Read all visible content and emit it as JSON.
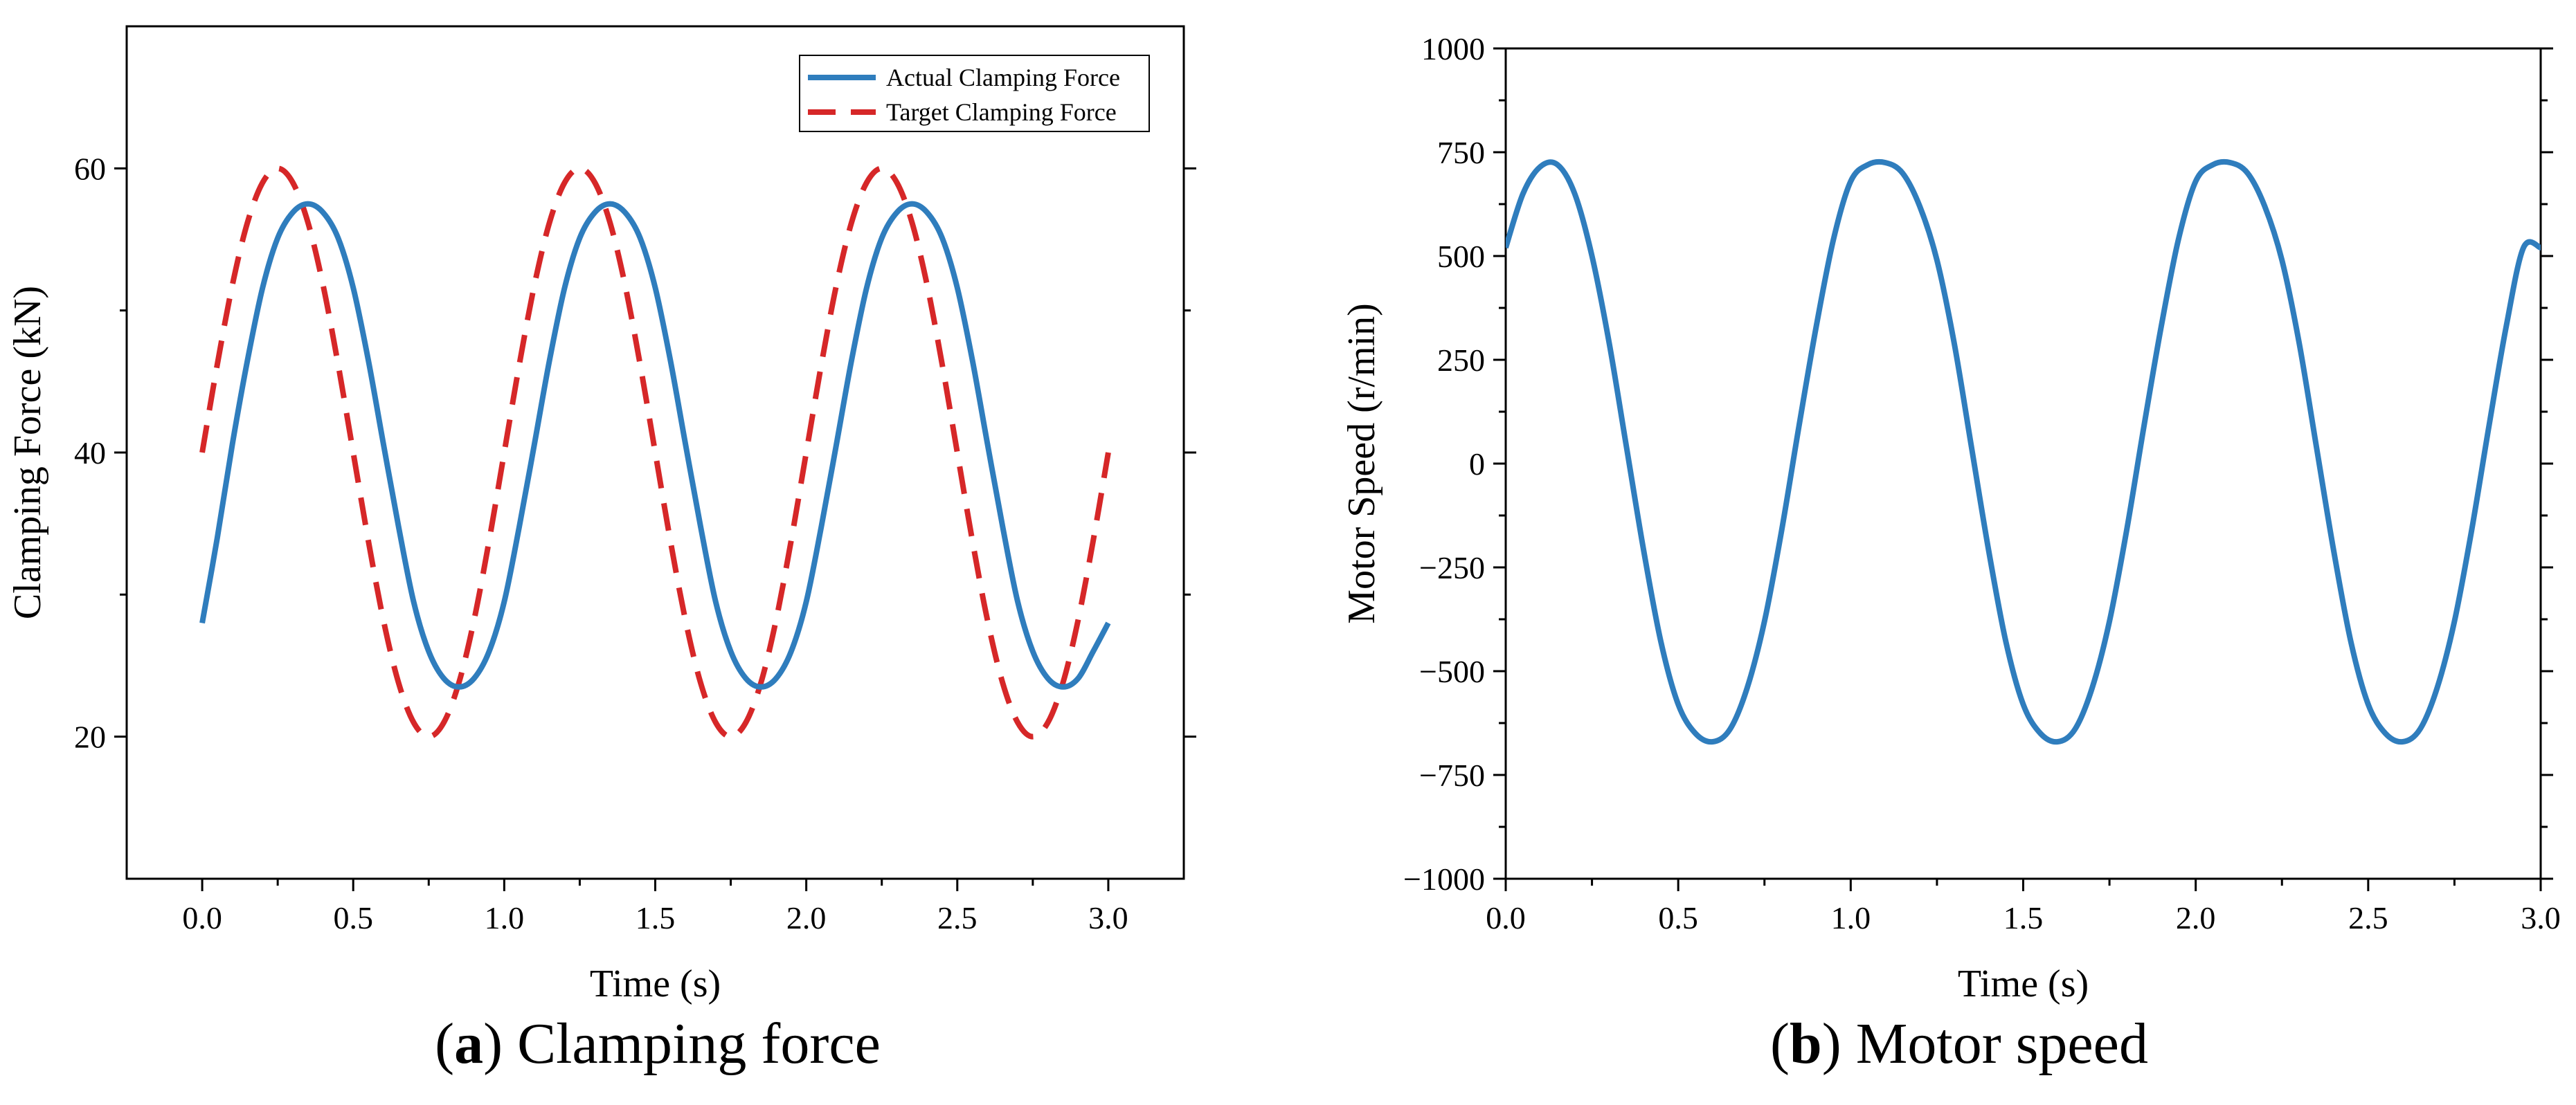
{
  "chart_data": [
    {
      "type": "line",
      "id": "clamping-force",
      "caption": {
        "open": "(",
        "letter": "a",
        "close": ")",
        "text": "Clamping force"
      },
      "xlabel": "Time (s)",
      "ylabel": "Clamping Force (kN)",
      "xlim": [
        -0.25,
        3.25
      ],
      "ylim": [
        10,
        70
      ],
      "xticks": [
        0.0,
        0.5,
        1.0,
        1.5,
        2.0,
        2.5,
        3.0
      ],
      "xtick_labels": [
        "0.0",
        "0.5",
        "1.0",
        "1.5",
        "2.0",
        "2.5",
        "3.0"
      ],
      "yticks": [
        20,
        40,
        60
      ],
      "ytick_labels": [
        "20",
        "40",
        "60"
      ],
      "legend": {
        "position": "top-right"
      },
      "series": [
        {
          "name": "Actual Clamping Force",
          "color": "#2f7dbd",
          "style": "solid",
          "x": [
            0.0,
            0.05,
            0.1,
            0.15,
            0.2,
            0.25,
            0.3,
            0.35,
            0.4,
            0.45,
            0.5,
            0.55,
            0.6,
            0.65,
            0.7,
            0.75,
            0.8,
            0.85,
            0.9,
            0.95,
            1.0,
            1.05,
            1.1,
            1.15,
            1.2,
            1.25,
            1.3,
            1.35,
            1.4,
            1.45,
            1.5,
            1.55,
            1.6,
            1.65,
            1.7,
            1.75,
            1.8,
            1.85,
            1.9,
            1.95,
            2.0,
            2.05,
            2.1,
            2.15,
            2.2,
            2.25,
            2.3,
            2.35,
            2.4,
            2.45,
            2.5,
            2.55,
            2.6,
            2.65,
            2.7,
            2.75,
            2.8,
            2.85,
            2.9,
            2.95,
            3.0
          ],
          "y": [
            28.0,
            34.0,
            40.6,
            46.5,
            51.6,
            55.1,
            56.9,
            57.5,
            56.9,
            55.1,
            51.6,
            46.5,
            40.6,
            34.8,
            29.5,
            26.0,
            24.1,
            23.5,
            24.1,
            26.0,
            29.5,
            34.8,
            40.6,
            46.5,
            51.6,
            55.1,
            56.9,
            57.5,
            56.9,
            55.1,
            51.6,
            46.5,
            40.6,
            34.8,
            29.5,
            26.0,
            24.1,
            23.5,
            24.1,
            26.0,
            29.5,
            34.8,
            40.6,
            46.5,
            51.6,
            55.1,
            56.9,
            57.5,
            56.9,
            55.1,
            51.6,
            46.5,
            40.6,
            34.8,
            29.5,
            26.0,
            24.1,
            23.5,
            24.1,
            26.0,
            28.0
          ]
        },
        {
          "name": "Target Clamping Force",
          "color": "#d62728",
          "style": "dashed",
          "x": [
            0.0,
            0.05,
            0.1,
            0.15,
            0.2,
            0.25,
            0.3,
            0.35,
            0.4,
            0.45,
            0.5,
            0.55,
            0.6,
            0.65,
            0.7,
            0.75,
            0.8,
            0.85,
            0.9,
            0.95,
            1.0,
            1.05,
            1.1,
            1.15,
            1.2,
            1.25,
            1.3,
            1.35,
            1.4,
            1.45,
            1.5,
            1.55,
            1.6,
            1.65,
            1.7,
            1.75,
            1.8,
            1.85,
            1.9,
            1.95,
            2.0,
            2.05,
            2.1,
            2.15,
            2.2,
            2.25,
            2.3,
            2.35,
            2.4,
            2.45,
            2.5,
            2.55,
            2.6,
            2.65,
            2.7,
            2.75,
            2.8,
            2.85,
            2.9,
            2.95,
            3.0
          ],
          "y": [
            40.0,
            46.2,
            51.8,
            56.2,
            59.0,
            60.0,
            59.0,
            56.2,
            51.8,
            46.2,
            40.0,
            33.8,
            28.2,
            23.8,
            21.0,
            20.0,
            21.0,
            23.8,
            28.2,
            33.8,
            40.0,
            46.2,
            51.8,
            56.2,
            59.0,
            60.0,
            59.0,
            56.2,
            51.8,
            46.2,
            40.0,
            33.8,
            28.2,
            23.8,
            21.0,
            20.0,
            21.0,
            23.8,
            28.2,
            33.8,
            40.0,
            46.2,
            51.8,
            56.2,
            59.0,
            60.0,
            59.0,
            56.2,
            51.8,
            46.2,
            40.0,
            33.8,
            28.2,
            23.8,
            21.0,
            20.0,
            21.0,
            23.8,
            28.2,
            33.8,
            40.0
          ]
        }
      ]
    },
    {
      "type": "line",
      "id": "motor-speed",
      "caption": {
        "open": "(",
        "letter": "b",
        "close": ")",
        "text": "Motor speed"
      },
      "xlabel": "Time (s)",
      "ylabel": "Motor Speed (r/min)",
      "xlim": [
        0.0,
        3.0
      ],
      "ylim": [
        -1000,
        1000
      ],
      "xticks": [
        0.0,
        0.5,
        1.0,
        1.5,
        2.0,
        2.5,
        3.0
      ],
      "xtick_labels": [
        "0.0",
        "0.5",
        "1.0",
        "1.5",
        "2.0",
        "2.5",
        "3.0"
      ],
      "yticks": [
        -1000,
        -750,
        -500,
        -250,
        0,
        250,
        500,
        750,
        1000
      ],
      "ytick_labels": [
        "−1000",
        "−750",
        "−500",
        "−250",
        "0",
        "250",
        "500",
        "750",
        "1000"
      ],
      "series": [
        {
          "name": "Motor Speed",
          "color": "#2f7dbd",
          "style": "solid",
          "x": [
            0.0,
            0.05,
            0.1,
            0.15,
            0.2,
            0.25,
            0.3,
            0.35,
            0.4,
            0.45,
            0.5,
            0.55,
            0.6,
            0.65,
            0.7,
            0.75,
            0.8,
            0.85,
            0.9,
            0.95,
            1.0,
            1.05,
            1.1,
            1.15,
            1.2,
            1.25,
            1.3,
            1.35,
            1.4,
            1.45,
            1.5,
            1.55,
            1.6,
            1.65,
            1.7,
            1.75,
            1.8,
            1.85,
            1.9,
            1.95,
            2.0,
            2.05,
            2.1,
            2.15,
            2.2,
            2.25,
            2.3,
            2.35,
            2.4,
            2.45,
            2.5,
            2.55,
            2.6,
            2.65,
            2.7,
            2.75,
            2.8,
            2.85,
            2.9,
            2.95,
            3.0
          ],
          "y": [
            520,
            650,
            715,
            720,
            650,
            500,
            290,
            40,
            -210,
            -430,
            -580,
            -650,
            -670,
            -640,
            -540,
            -380,
            -160,
            90,
            330,
            540,
            680,
            720,
            725,
            700,
            620,
            490,
            290,
            40,
            -210,
            -430,
            -580,
            -650,
            -670,
            -640,
            -540,
            -380,
            -160,
            90,
            330,
            540,
            680,
            720,
            725,
            700,
            620,
            490,
            290,
            40,
            -210,
            -430,
            -580,
            -650,
            -670,
            -640,
            -540,
            -380,
            -160,
            90,
            330,
            520,
            520
          ]
        }
      ]
    }
  ]
}
